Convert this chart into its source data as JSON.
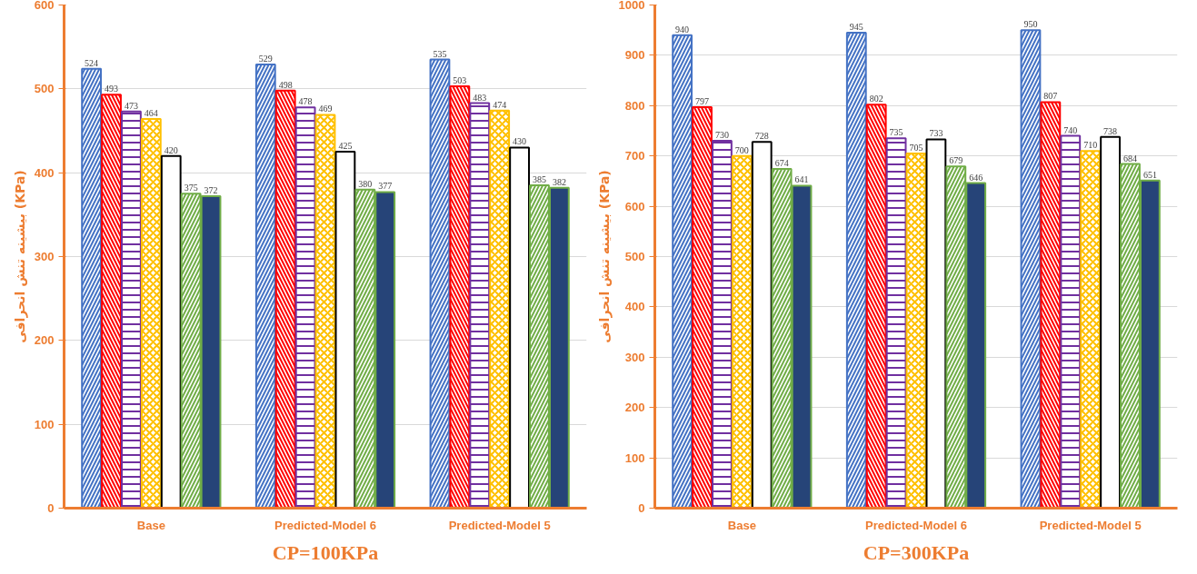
{
  "chart_data": [
    {
      "type": "bar",
      "title": "CP=100KPa",
      "ylabel": "بیشینه تنش انحرافی (KPa)",
      "categories": [
        "Base",
        "Predicted-Model 6",
        "Predicted-Model 5"
      ],
      "ylim": [
        0,
        600
      ],
      "yticks": [
        0,
        100,
        200,
        300,
        400,
        500,
        600
      ],
      "grid": "y",
      "data_labels": true,
      "series": [
        {
          "color": "#4472c4",
          "values": [
            524,
            529,
            535
          ]
        },
        {
          "color": "#ff0000",
          "values": [
            493,
            498,
            503
          ]
        },
        {
          "color": "#7030a0",
          "values": [
            473,
            478,
            483
          ]
        },
        {
          "color": "#ffc000",
          "values": [
            464,
            469,
            474
          ]
        },
        {
          "color": "#000000",
          "values": [
            420,
            425,
            430
          ]
        },
        {
          "color": "#70ad47",
          "values": [
            375,
            380,
            385
          ]
        },
        {
          "color": "#264478",
          "values": [
            372,
            377,
            382
          ]
        }
      ]
    },
    {
      "type": "bar",
      "title": "CP=300KPa",
      "ylabel": "بیشینه تنش انحرافی (KPa)",
      "categories": [
        "Base",
        "Predicted-Model 6",
        "Predicted-Model 5"
      ],
      "ylim": [
        0,
        1000
      ],
      "yticks": [
        0,
        100,
        200,
        300,
        400,
        500,
        600,
        700,
        800,
        900,
        1000
      ],
      "grid": "y",
      "data_labels": true,
      "series": [
        {
          "color": "#4472c4",
          "values": [
            940,
            945,
            950
          ]
        },
        {
          "color": "#ff0000",
          "values": [
            797,
            802,
            807
          ]
        },
        {
          "color": "#7030a0",
          "values": [
            730,
            735,
            740
          ]
        },
        {
          "color": "#ffc000",
          "values": [
            700,
            705,
            710
          ]
        },
        {
          "color": "#000000",
          "values": [
            728,
            733,
            738
          ]
        },
        {
          "color": "#70ad47",
          "values": [
            674,
            679,
            684
          ]
        },
        {
          "color": "#264478",
          "values": [
            641,
            646,
            651
          ]
        }
      ]
    }
  ]
}
